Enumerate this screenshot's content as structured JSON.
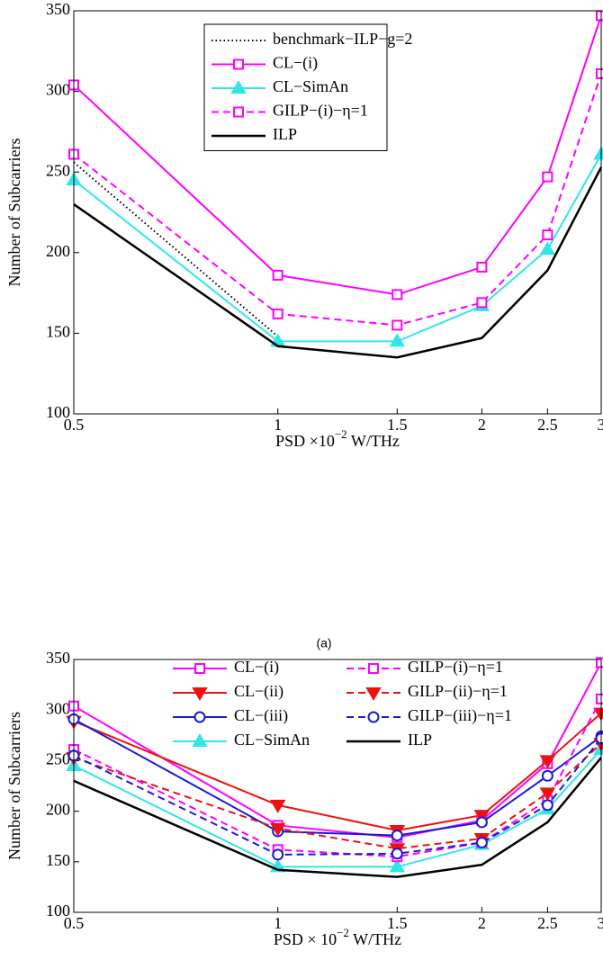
{
  "chart_data": [
    {
      "type": "line",
      "xlabel": [
        "PSD ×10",
        "−2",
        " W/THz"
      ],
      "ylabel": "Number of Subcarriers",
      "caption": "(a)",
      "xscale": "log",
      "xlim": [
        0.5,
        3
      ],
      "ylim": [
        100,
        350
      ],
      "xticks": [
        0.5,
        1,
        1.5,
        2,
        2.5,
        3
      ],
      "yticks": [
        100,
        150,
        200,
        250,
        300,
        350
      ],
      "legend": "top-center",
      "legend_columns": 1,
      "legend_box": true,
      "x": [
        0.5,
        1,
        1.5,
        2,
        2.5,
        3
      ],
      "series": [
        {
          "name": "benchmark−ILP−g=2",
          "color": "#000000",
          "dash": "dotted",
          "marker": "none",
          "values": [
            256,
            148,
            null,
            null,
            null,
            null
          ]
        },
        {
          "name": "CL−(i)",
          "color": "#ff00ff",
          "dash": "solid",
          "marker": "square",
          "values": [
            304,
            186,
            174,
            191,
            247,
            347
          ]
        },
        {
          "name": "CL−SimAn",
          "color": "#33e6e6",
          "dash": "solid",
          "marker": "triangle-up",
          "values": [
            245,
            145,
            145,
            167,
            202,
            261
          ]
        },
        {
          "name": "GILP−(i)−η=1",
          "color": "#ff00ff",
          "dash": "dashed",
          "marker": "square",
          "values": [
            261,
            162,
            155,
            169,
            211,
            311
          ]
        },
        {
          "name": "ILP",
          "color": "#000000",
          "dash": "solid",
          "marker": "none",
          "values": [
            230,
            142,
            135,
            147,
            189,
            253
          ]
        }
      ]
    },
    {
      "type": "line",
      "xlabel": [
        "PSD × 10",
        "−2",
        " W/THz"
      ],
      "ylabel": "Number of Subcarriers",
      "xscale": "log",
      "xlim": [
        0.5,
        3
      ],
      "ylim": [
        100,
        350
      ],
      "xticks": [
        0.5,
        1,
        1.5,
        2,
        2.5,
        3
      ],
      "yticks": [
        100,
        150,
        200,
        250,
        300,
        350
      ],
      "legend": "top-center",
      "legend_columns": 2,
      "legend_box": false,
      "x": [
        0.5,
        1,
        1.5,
        2,
        2.5,
        3
      ],
      "series": [
        {
          "name": "CL−(i)",
          "color": "#ff00ff",
          "dash": "solid",
          "marker": "square",
          "values": [
            304,
            186,
            174,
            191,
            247,
            347
          ]
        },
        {
          "name": "CL−(ii)",
          "color": "#ee1111",
          "dash": "solid",
          "marker": "triangle-down",
          "values": [
            289,
            206,
            181,
            196,
            250,
            297
          ]
        },
        {
          "name": "CL−(iii)",
          "color": "#1a1ad6",
          "dash": "solid",
          "marker": "circle",
          "values": [
            291,
            180,
            176,
            189,
            235,
            274
          ]
        },
        {
          "name": "CL−SimAn",
          "color": "#33e6e6",
          "dash": "solid",
          "marker": "triangle-up",
          "values": [
            245,
            145,
            145,
            167,
            202,
            261
          ]
        },
        {
          "name": "GILP−(i)−η=1",
          "color": "#ff00ff",
          "dash": "dashed",
          "marker": "square",
          "values": [
            261,
            162,
            155,
            169,
            211,
            311
          ]
        },
        {
          "name": "GILP−(ii)−η=1",
          "color": "#ee1111",
          "dash": "dashed",
          "marker": "triangle-down",
          "values": [
            253,
            183,
            163,
            173,
            218,
            267
          ]
        },
        {
          "name": "GILP−(iii)−η=1",
          "color": "#1a1ad6",
          "dash": "dashed",
          "marker": "circle",
          "values": [
            255,
            157,
            158,
            169,
            206,
            272
          ]
        },
        {
          "name": "ILP",
          "color": "#000000",
          "dash": "solid",
          "marker": "none",
          "values": [
            230,
            142,
            135,
            147,
            189,
            253
          ]
        }
      ]
    }
  ]
}
